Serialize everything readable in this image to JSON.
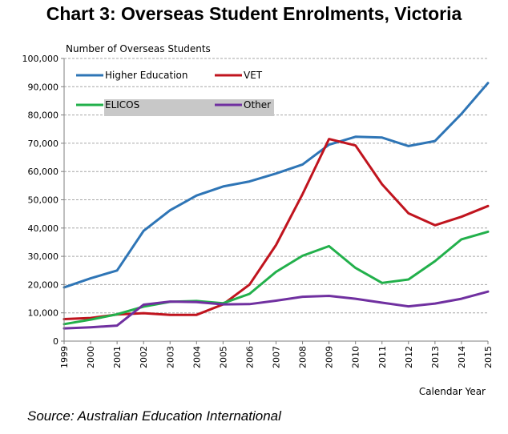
{
  "chart_data": {
    "type": "line",
    "title": "Chart 3: Overseas Student Enrolments, Victoria",
    "ylabel": "Number of Overseas Students",
    "xlabel": "Calendar Year",
    "source": "Source: Australian Education International",
    "ylim": [
      0,
      100000
    ],
    "yticks": [
      "0",
      "10,000",
      "20,000",
      "30,000",
      "40,000",
      "50,000",
      "60,000",
      "70,000",
      "80,000",
      "90,000",
      "100,000"
    ],
    "ytick_values": [
      0,
      10000,
      20000,
      30000,
      40000,
      50000,
      60000,
      70000,
      80000,
      90000,
      100000
    ],
    "grid": true,
    "legend_position": "top-left",
    "x": [
      "1999",
      "2000",
      "2001",
      "2002",
      "2003",
      "2004",
      "2005",
      "2006",
      "2007",
      "2008",
      "2009",
      "2010",
      "2011",
      "2012",
      "2013",
      "2014",
      "2015"
    ],
    "series": [
      {
        "name": "Higher Education",
        "color": "#2e75b6",
        "values": [
          19000,
          22200,
          25000,
          39000,
          46300,
          51500,
          54700,
          56500,
          59300,
          62500,
          69500,
          72300,
          72000,
          69000,
          70800,
          80400,
          91300
        ]
      },
      {
        "name": "VET",
        "color": "#c0141e",
        "values": [
          7800,
          8200,
          9400,
          9900,
          9300,
          9300,
          13000,
          20000,
          34000,
          52000,
          71500,
          69200,
          55500,
          45200,
          41000,
          44000,
          47800
        ]
      },
      {
        "name": "ELICOS",
        "color": "#22b04b",
        "values": [
          6000,
          7600,
          9500,
          12200,
          13900,
          14200,
          13400,
          16700,
          24500,
          30200,
          33600,
          25900,
          20600,
          21800,
          28300,
          36000,
          38700
        ]
      },
      {
        "name": "Other",
        "color": "#7030a0",
        "values": [
          4500,
          4900,
          5500,
          12900,
          14000,
          13800,
          13000,
          13100,
          14300,
          15700,
          16000,
          15000,
          13600,
          12300,
          13300,
          15000,
          17500
        ]
      }
    ]
  }
}
